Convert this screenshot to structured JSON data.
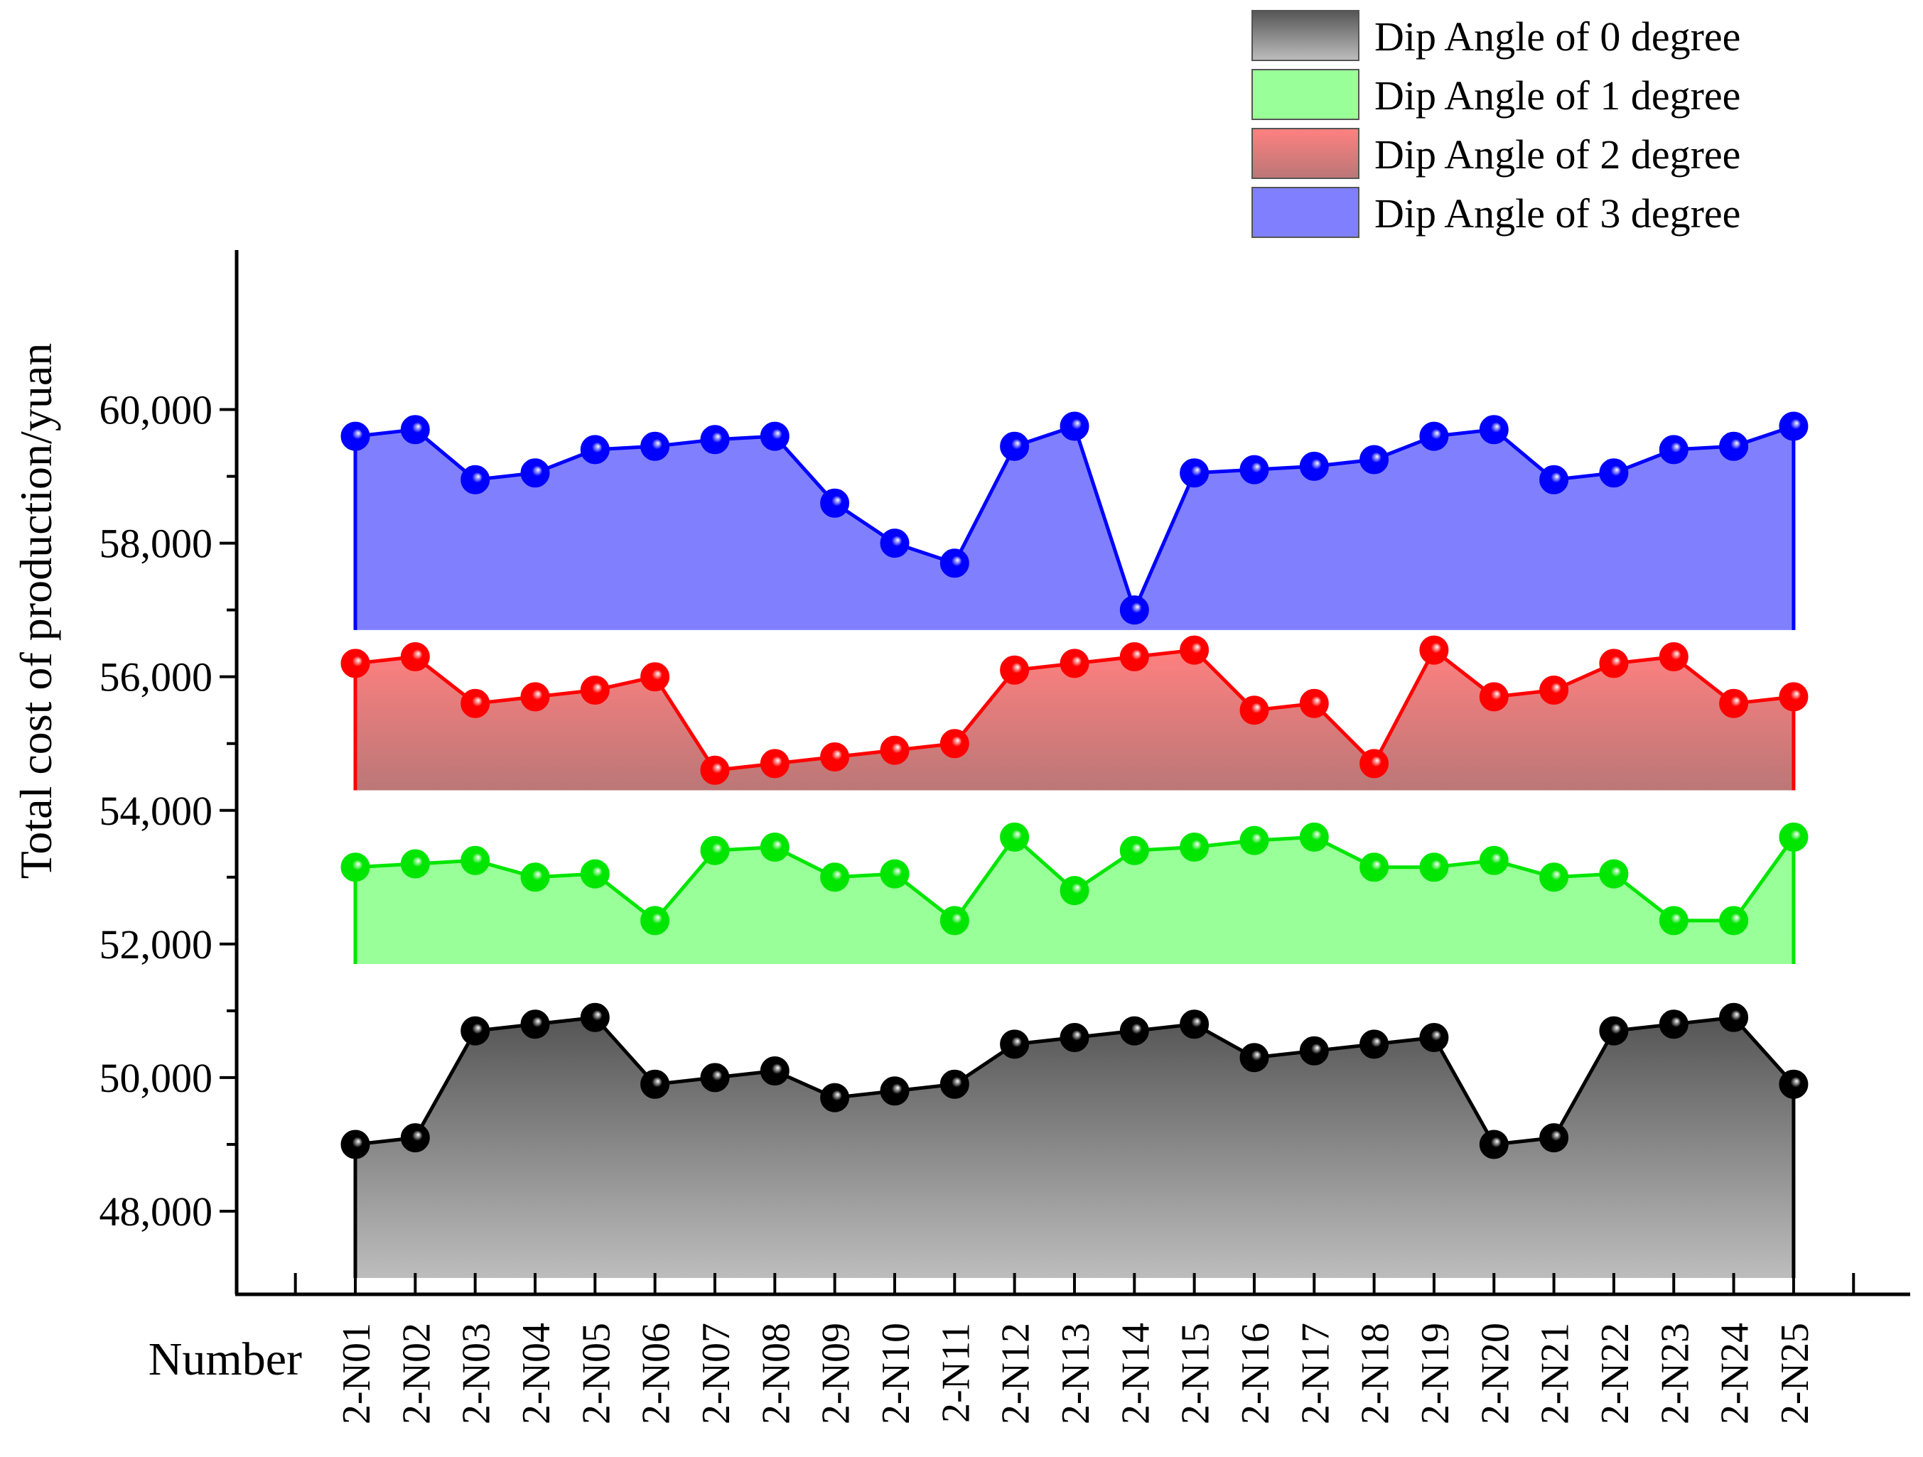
{
  "chart_data": {
    "type": "area",
    "ylabel": "Total cost of production/yuan",
    "xlabel": "Number",
    "ylim": [
      47000,
      60300
    ],
    "yticks": [
      48000,
      50000,
      52000,
      54000,
      56000,
      58000,
      60000
    ],
    "ytick_labels": [
      "48,000",
      "50,000",
      "52,000",
      "54,000",
      "56,000",
      "58,000",
      "60,000"
    ],
    "categories": [
      "2-N01",
      "2-N02",
      "2-N03",
      "2-N04",
      "2-N05",
      "2-N06",
      "2-N07",
      "2-N08",
      "2-N09",
      "2-N10",
      "2-N11",
      "2-N12",
      "2-N13",
      "2-N14",
      "2-N15",
      "2-N16",
      "2-N17",
      "2-N18",
      "2-N19",
      "2-N20",
      "2-N21",
      "2-N22",
      "2-N23",
      "2-N24",
      "2-N25"
    ],
    "legend_position": "top-right",
    "series": [
      {
        "name": "Dip Angle of 0 degree",
        "color": "#000000",
        "fill_top": "#555555",
        "fill_bottom": "#bdbdbd",
        "base": 47000,
        "values": [
          49000,
          49100,
          50700,
          50800,
          50900,
          49900,
          50000,
          50100,
          49700,
          49800,
          49900,
          50500,
          50600,
          50700,
          50800,
          50300,
          50400,
          50500,
          50600,
          49000,
          49100,
          50700,
          50800,
          50900,
          49900
        ]
      },
      {
        "name": "Dip Angle of 1 degree",
        "color": "#00e600",
        "fill_top": "#99ff99",
        "fill_bottom": "#99ff99",
        "base": 51700,
        "values": [
          53150,
          53200,
          53250,
          53000,
          53050,
          52350,
          53400,
          53450,
          53000,
          53050,
          52350,
          53600,
          52800,
          53400,
          53450,
          53550,
          53600,
          53150,
          53150,
          53250,
          53000,
          53050,
          52350,
          52350,
          53600
        ]
      },
      {
        "name": "Dip Angle of 2 degree",
        "color": "#ff0000",
        "fill_top": "#ff8080",
        "fill_bottom": "#bb7777",
        "base": 54300,
        "values": [
          56200,
          56300,
          55600,
          55700,
          55800,
          56000,
          54600,
          54700,
          54800,
          54900,
          55000,
          56100,
          56200,
          56300,
          56400,
          55500,
          55600,
          54700,
          56400,
          55700,
          55800,
          56200,
          56300,
          55600,
          55700
        ]
      },
      {
        "name": "Dip Angle of 3 degree",
        "color": "#0000ff",
        "fill_top": "#8080ff",
        "fill_bottom": "#8080ff",
        "base": 56700,
        "values": [
          59600,
          59700,
          58950,
          59050,
          59400,
          59450,
          59550,
          59600,
          58600,
          58000,
          57700,
          59450,
          59750,
          57000,
          59050,
          59100,
          59150,
          59250,
          59600,
          59700,
          58950,
          59050,
          59400,
          59450,
          59750
        ]
      }
    ]
  }
}
